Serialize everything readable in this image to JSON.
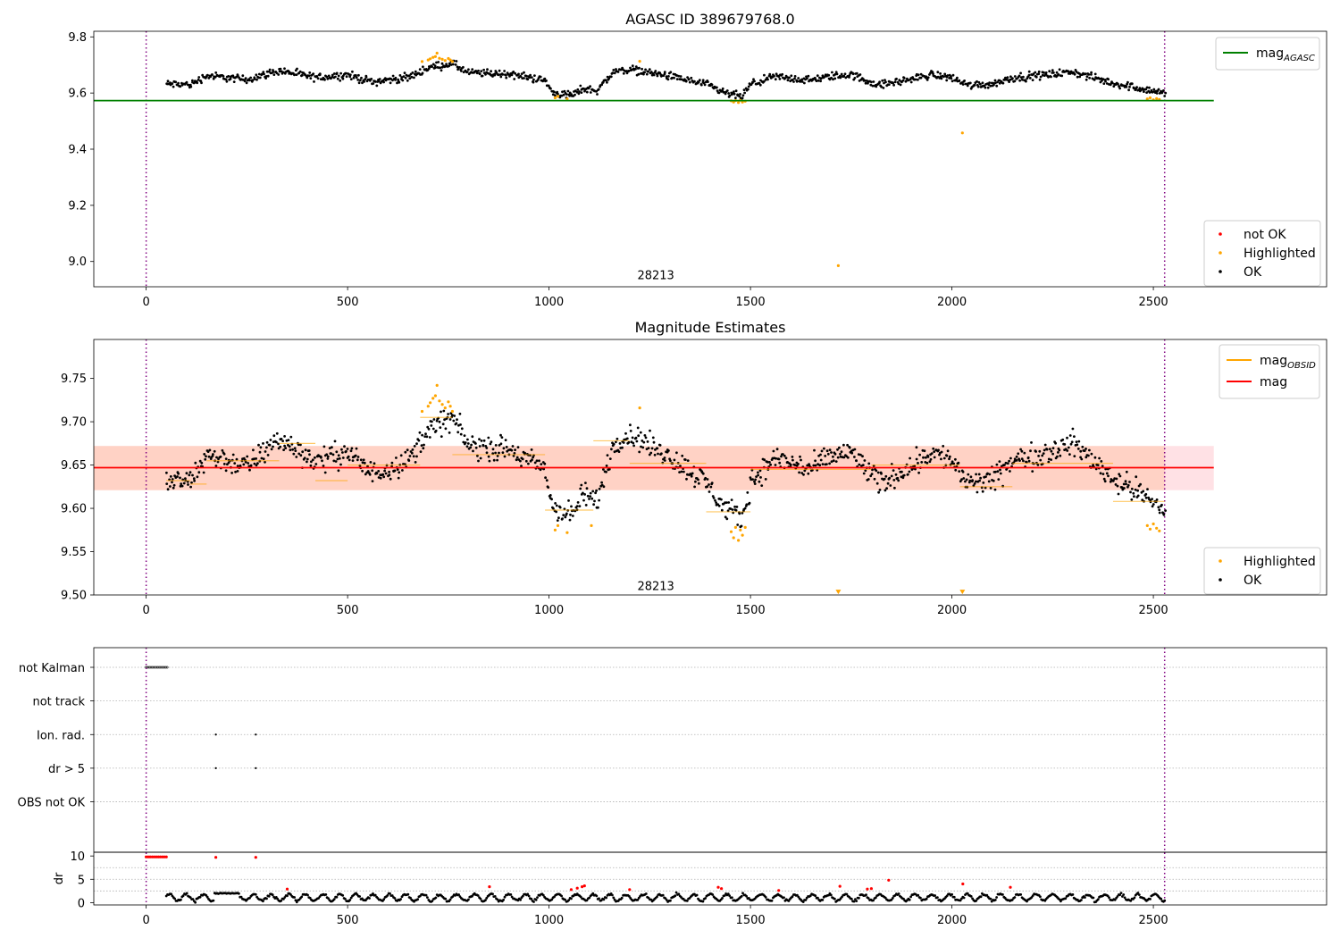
{
  "chart_data": [
    {
      "type": "scatter",
      "title": "AGASC ID 389679768.0",
      "xlim": [
        -130,
        2930
      ],
      "ylim": [
        8.91,
        9.82
      ],
      "xticks": [
        0,
        500,
        1000,
        1500,
        2000,
        2500
      ],
      "yticks": [
        9.0,
        9.2,
        9.4,
        9.6,
        9.8
      ],
      "ytick_labels": [
        "9.0",
        "9.2",
        "9.4",
        "9.6",
        "9.8"
      ],
      "annotation": "28213",
      "annotation_pos": [
        1265,
        8.95
      ],
      "vlines": [
        0,
        2528
      ],
      "hline": {
        "name": "mag_AGASC",
        "value": 9.573,
        "x_range": [
          -130,
          2650
        ],
        "color": "#008000"
      },
      "legend_lines": [
        {
          "label_main": "mag",
          "label_sub": "AGASC",
          "color": "#008000"
        }
      ],
      "legend_points": [
        {
          "label": "not OK",
          "color": "#ff0000"
        },
        {
          "label": "Highlighted",
          "color": "#ffa500"
        },
        {
          "label": "OK",
          "color": "#000000"
        }
      ],
      "ok_series": {
        "name": "OK",
        "color": "#000000",
        "x_range": [
          50,
          2530
        ],
        "step": 2.2,
        "profile": [
          [
            50,
            9.632
          ],
          [
            110,
            9.63
          ],
          [
            150,
            9.662
          ],
          [
            250,
            9.648
          ],
          [
            330,
            9.68
          ],
          [
            420,
            9.655
          ],
          [
            500,
            9.665
          ],
          [
            560,
            9.64
          ],
          [
            650,
            9.655
          ],
          [
            700,
            9.69
          ],
          [
            760,
            9.705
          ],
          [
            800,
            9.672
          ],
          [
            900,
            9.668
          ],
          [
            990,
            9.645
          ],
          [
            1010,
            9.6
          ],
          [
            1060,
            9.592
          ],
          [
            1080,
            9.615
          ],
          [
            1120,
            9.61
          ],
          [
            1160,
            9.675
          ],
          [
            1200,
            9.685
          ],
          [
            1300,
            9.66
          ],
          [
            1390,
            9.63
          ],
          [
            1440,
            9.598
          ],
          [
            1480,
            9.588
          ],
          [
            1500,
            9.63
          ],
          [
            1560,
            9.658
          ],
          [
            1650,
            9.645
          ],
          [
            1700,
            9.66
          ],
          [
            1750,
            9.665
          ],
          [
            1820,
            9.628
          ],
          [
            1900,
            9.65
          ],
          [
            1950,
            9.665
          ],
          [
            2000,
            9.655
          ],
          [
            2040,
            9.628
          ],
          [
            2100,
            9.632
          ],
          [
            2150,
            9.655
          ],
          [
            2200,
            9.66
          ],
          [
            2300,
            9.675
          ],
          [
            2400,
            9.635
          ],
          [
            2450,
            9.622
          ],
          [
            2530,
            9.598
          ]
        ],
        "noise": 0.012
      },
      "highlighted_points": [
        [
          685,
          9.712
        ],
        [
          700,
          9.718
        ],
        [
          705,
          9.722
        ],
        [
          712,
          9.727
        ],
        [
          718,
          9.73
        ],
        [
          722,
          9.742
        ],
        [
          728,
          9.724
        ],
        [
          735,
          9.72
        ],
        [
          742,
          9.716
        ],
        [
          750,
          9.723
        ],
        [
          755,
          9.718
        ],
        [
          760,
          9.712
        ],
        [
          1015,
          9.583
        ],
        [
          1022,
          9.588
        ],
        [
          1045,
          9.579
        ],
        [
          1225,
          9.713
        ],
        [
          1452,
          9.572
        ],
        [
          1458,
          9.568
        ],
        [
          1463,
          9.573
        ],
        [
          1470,
          9.566
        ],
        [
          1475,
          9.574
        ],
        [
          1480,
          9.568
        ],
        [
          1487,
          9.571
        ],
        [
          1718,
          8.985
        ],
        [
          2026,
          9.458
        ],
        [
          2485,
          9.579
        ],
        [
          2492,
          9.583
        ],
        [
          2500,
          9.576
        ],
        [
          2508,
          9.58
        ],
        [
          2515,
          9.577
        ]
      ]
    },
    {
      "type": "scatter",
      "title": "Magnitude Estimates",
      "xlim": [
        -130,
        2930
      ],
      "ylim": [
        9.5,
        9.795
      ],
      "xticks": [
        0,
        500,
        1000,
        1500,
        2000,
        2500
      ],
      "yticks": [
        9.5,
        9.55,
        9.6,
        9.65,
        9.7,
        9.75
      ],
      "ytick_labels": [
        "9.50",
        "9.55",
        "9.60",
        "9.65",
        "9.70",
        "9.75"
      ],
      "annotation": "28213",
      "annotation_pos": [
        1265,
        9.51
      ],
      "vlines": [
        0,
        2528
      ],
      "band": {
        "y_range": [
          9.621,
          9.672
        ],
        "x_range": [
          -130,
          2650
        ],
        "color": "#ff9aa8",
        "x_range_inner": [
          -130,
          2528
        ],
        "inner_color": "#ffb07a"
      },
      "hline": {
        "name": "mag",
        "value": 9.647,
        "x_range": [
          -130,
          2650
        ],
        "color": "#ff0000"
      },
      "obsid_segments": [
        [
          50,
          110,
          9.632
        ],
        [
          110,
          150,
          9.628
        ],
        [
          150,
          330,
          9.655
        ],
        [
          330,
          420,
          9.675
        ],
        [
          420,
          500,
          9.632
        ],
        [
          500,
          680,
          9.65
        ],
        [
          680,
          760,
          9.705
        ],
        [
          760,
          990,
          9.662
        ],
        [
          990,
          1110,
          9.598
        ],
        [
          1110,
          1200,
          9.678
        ],
        [
          1200,
          1390,
          9.652
        ],
        [
          1390,
          1500,
          9.596
        ],
        [
          1500,
          1800,
          9.645
        ],
        [
          1800,
          2020,
          9.65
        ],
        [
          2020,
          2150,
          9.625
        ],
        [
          2150,
          2400,
          9.652
        ],
        [
          2400,
          2528,
          9.608
        ]
      ],
      "legend_lines": [
        {
          "label_main": "mag",
          "label_sub": "OBSID",
          "color": "#ffa500"
        },
        {
          "label_main": "mag",
          "label_sub": "",
          "color": "#ff0000"
        }
      ],
      "legend_points": [
        {
          "label": "Highlighted",
          "color": "#ffa500"
        },
        {
          "label": "OK",
          "color": "#000000"
        }
      ],
      "ok_series": {
        "name": "OK",
        "color": "#000000",
        "x_range": [
          50,
          2530
        ],
        "step": 2.2,
        "profile": [
          [
            50,
            9.632
          ],
          [
            110,
            9.63
          ],
          [
            150,
            9.662
          ],
          [
            250,
            9.648
          ],
          [
            330,
            9.68
          ],
          [
            420,
            9.655
          ],
          [
            500,
            9.665
          ],
          [
            560,
            9.64
          ],
          [
            650,
            9.655
          ],
          [
            700,
            9.69
          ],
          [
            760,
            9.705
          ],
          [
            800,
            9.672
          ],
          [
            900,
            9.668
          ],
          [
            990,
            9.645
          ],
          [
            1010,
            9.6
          ],
          [
            1060,
            9.592
          ],
          [
            1080,
            9.615
          ],
          [
            1120,
            9.61
          ],
          [
            1160,
            9.675
          ],
          [
            1200,
            9.685
          ],
          [
            1300,
            9.66
          ],
          [
            1390,
            9.63
          ],
          [
            1440,
            9.598
          ],
          [
            1480,
            9.588
          ],
          [
            1500,
            9.63
          ],
          [
            1560,
            9.658
          ],
          [
            1650,
            9.645
          ],
          [
            1700,
            9.66
          ],
          [
            1750,
            9.665
          ],
          [
            1820,
            9.628
          ],
          [
            1900,
            9.65
          ],
          [
            1950,
            9.665
          ],
          [
            2000,
            9.655
          ],
          [
            2040,
            9.628
          ],
          [
            2100,
            9.632
          ],
          [
            2150,
            9.655
          ],
          [
            2200,
            9.66
          ],
          [
            2300,
            9.675
          ],
          [
            2400,
            9.635
          ],
          [
            2450,
            9.622
          ],
          [
            2530,
            9.598
          ]
        ],
        "noise": 0.012
      },
      "highlighted_points": [
        [
          685,
          9.712
        ],
        [
          700,
          9.718
        ],
        [
          705,
          9.722
        ],
        [
          712,
          9.727
        ],
        [
          718,
          9.73
        ],
        [
          722,
          9.742
        ],
        [
          728,
          9.724
        ],
        [
          735,
          9.72
        ],
        [
          742,
          9.716
        ],
        [
          750,
          9.723
        ],
        [
          755,
          9.718
        ],
        [
          760,
          9.712
        ],
        [
          1015,
          9.575
        ],
        [
          1022,
          9.58
        ],
        [
          1045,
          9.572
        ],
        [
          1105,
          9.58
        ],
        [
          1225,
          9.716
        ],
        [
          1452,
          9.573
        ],
        [
          1458,
          9.566
        ],
        [
          1463,
          9.578
        ],
        [
          1470,
          9.563
        ],
        [
          1475,
          9.575
        ],
        [
          1480,
          9.569
        ],
        [
          1487,
          9.578
        ],
        [
          2485,
          9.58
        ],
        [
          2492,
          9.576
        ],
        [
          2500,
          9.582
        ],
        [
          2508,
          9.577
        ],
        [
          2515,
          9.574
        ]
      ],
      "offscale_markers": [
        [
          1718,
          9.503
        ],
        [
          2026,
          9.503
        ]
      ]
    },
    {
      "type": "scatter",
      "title": "",
      "xlim": [
        -130,
        2930
      ],
      "flag_ylim": [
        -0.5,
        5.0
      ],
      "flag_rows": [
        {
          "label": "not Kalman",
          "y": 5
        },
        {
          "label": "not track",
          "y": 4
        },
        {
          "label": "Ion. rad.",
          "y": 3
        },
        {
          "label": "dr > 5",
          "y": 2
        },
        {
          "label": "OBS not OK",
          "y": 1
        }
      ],
      "flag_points": [
        {
          "row": 5,
          "x_range": [
            0,
            52
          ],
          "step": 4
        },
        {
          "row": 3,
          "x": [
            173,
            272
          ]
        },
        {
          "row": 2,
          "x": [
            173,
            272
          ]
        }
      ],
      "vlines": [
        0,
        2528
      ],
      "dr_panel": {
        "ylabel": "dr",
        "ylim": [
          -0.5,
          10.8
        ],
        "yticks": [
          0,
          5,
          10
        ],
        "ytick_labels": [
          "0",
          "5",
          "10"
        ],
        "gridlines": [
          2.5,
          5,
          7.5
        ],
        "xticks": [
          0,
          500,
          1000,
          1500,
          2000,
          2500
        ],
        "ok_x_range": [
          50,
          2530
        ],
        "ok_step": 3,
        "ok_mean": 1.1,
        "ok_amp": 0.7,
        "plateau": [
          170,
          230,
          2.0
        ],
        "red_points": [
          [
            0,
            9.8
          ],
          [
            5,
            9.8
          ],
          [
            10,
            9.8
          ],
          [
            15,
            9.8
          ],
          [
            20,
            9.8
          ],
          [
            25,
            9.8
          ],
          [
            30,
            9.8
          ],
          [
            35,
            9.8
          ],
          [
            40,
            9.8
          ],
          [
            45,
            9.8
          ],
          [
            50,
            9.8
          ],
          [
            173,
            9.7
          ],
          [
            272,
            9.7
          ],
          [
            350,
            2.9
          ],
          [
            852,
            3.4
          ],
          [
            1055,
            2.8
          ],
          [
            1070,
            3.1
          ],
          [
            1082,
            3.4
          ],
          [
            1088,
            3.6
          ],
          [
            1200,
            2.8
          ],
          [
            1420,
            3.3
          ],
          [
            1428,
            3.0
          ],
          [
            1570,
            2.6
          ],
          [
            1722,
            3.5
          ],
          [
            1790,
            2.9
          ],
          [
            1800,
            3.0
          ],
          [
            1843,
            4.8
          ],
          [
            2027,
            4.0
          ],
          [
            2145,
            3.3
          ]
        ]
      }
    }
  ]
}
